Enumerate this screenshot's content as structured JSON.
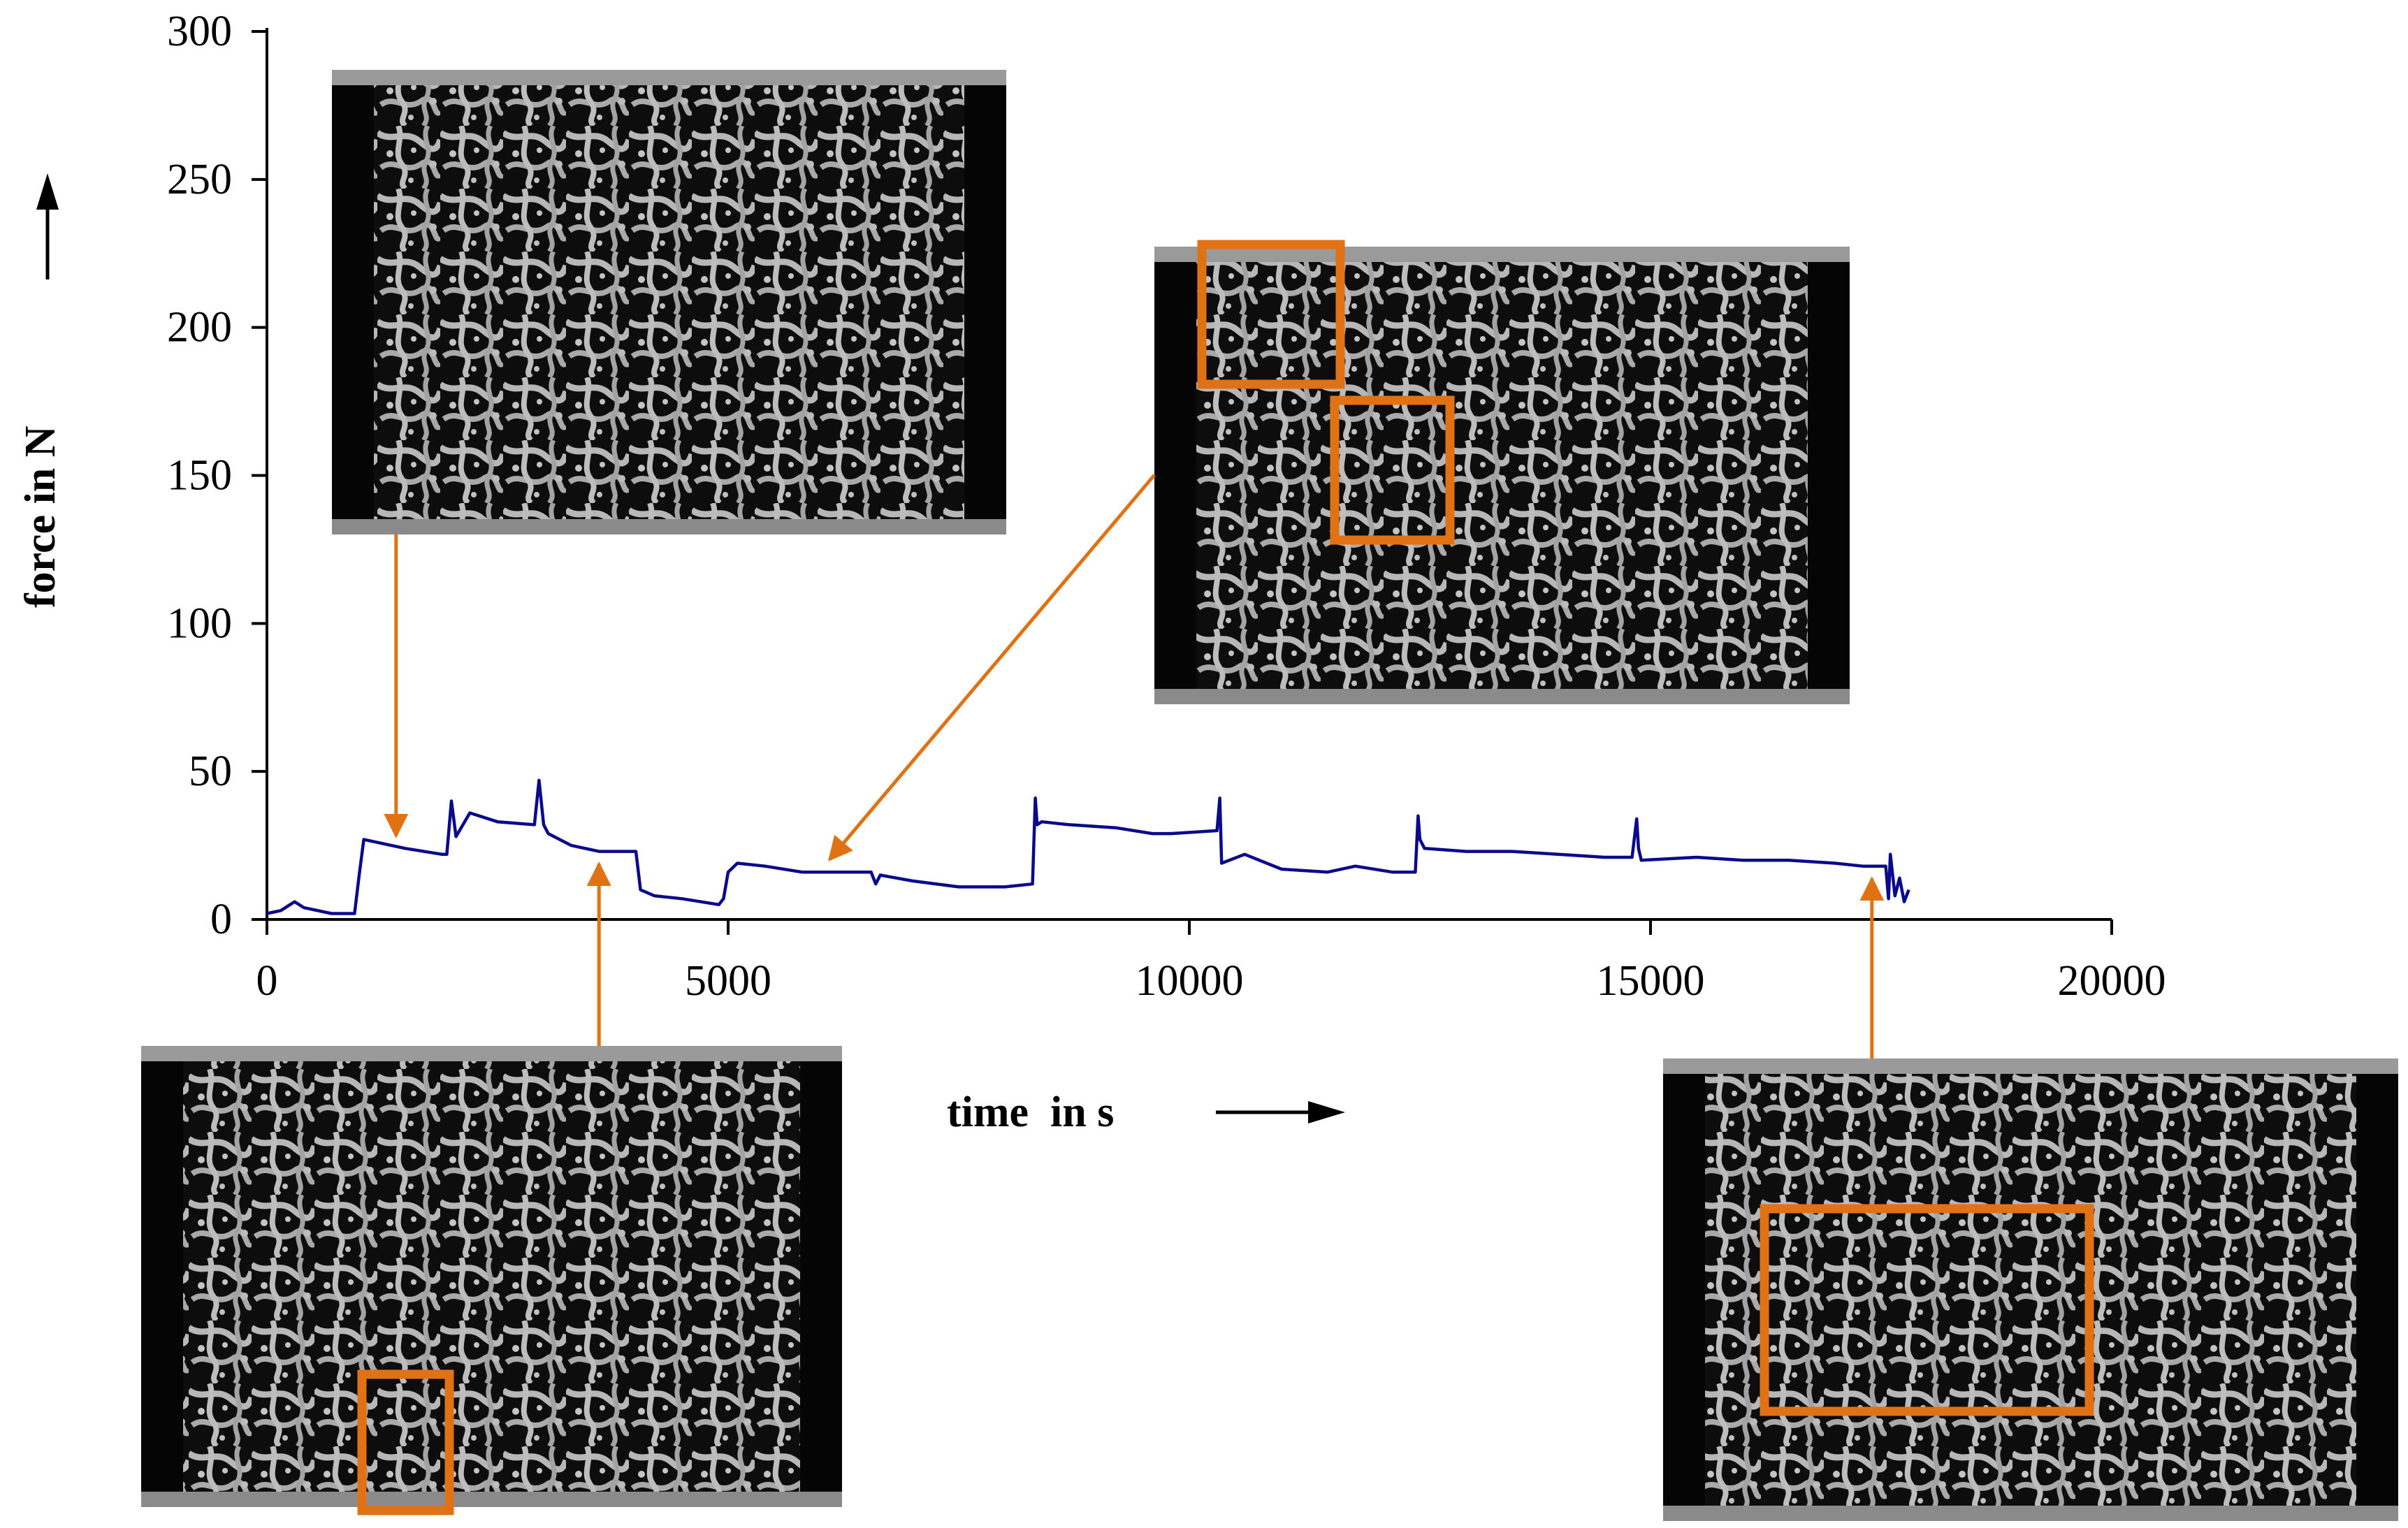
{
  "chart_data": {
    "type": "line",
    "xlabel": "time  in s",
    "ylabel": "force in N",
    "xlim": [
      0,
      20000
    ],
    "ylim": [
      0,
      300
    ],
    "x_ticks": [
      "0",
      "5000",
      "10000",
      "15000",
      "20000"
    ],
    "y_ticks": [
      "0",
      "50",
      "100",
      "150",
      "200",
      "250",
      "300"
    ],
    "grid": false,
    "legend": "none",
    "colors": {
      "series": "#0a0a8c",
      "annotation": "#e07214",
      "axis": "#000000"
    },
    "series": [
      {
        "x": [
          0,
          150,
          300,
          400,
          700,
          950,
          1000,
          1050,
          1500,
          1900,
          1950,
          2000,
          2050,
          2200,
          2500,
          2900,
          2950,
          3000,
          3050,
          3300,
          3600,
          4000,
          4050,
          4200,
          4500,
          4900,
          4950,
          5000,
          5100,
          5400,
          5800,
          6200,
          6550,
          6600,
          6650,
          7000,
          7500,
          8000,
          8300,
          8330,
          8350,
          8400,
          8700,
          9200,
          9600,
          9800,
          10300,
          10330,
          10350,
          10600,
          11000,
          11500,
          11800,
          12200,
          12450,
          12480,
          12500,
          12550,
          13000,
          13500,
          14000,
          14500,
          14800,
          14850,
          14870,
          14900,
          15500,
          16000,
          16500,
          17000,
          17300,
          17550,
          17580,
          17600,
          17650,
          17700,
          17750,
          17800
        ],
        "y": [
          2,
          3,
          6,
          4,
          2,
          2,
          15,
          27,
          24,
          22,
          22,
          40,
          28,
          36,
          33,
          32,
          47,
          32,
          29,
          25,
          23,
          23,
          10,
          8,
          7,
          5,
          7,
          16,
          19,
          18,
          16,
          16,
          16,
          12,
          15,
          13,
          11,
          11,
          12,
          41,
          32,
          33,
          32,
          31,
          29,
          29,
          30,
          41,
          19,
          22,
          17,
          16,
          18,
          16,
          16,
          35,
          27,
          24,
          23,
          23,
          22,
          21,
          21,
          34,
          24,
          20,
          21,
          20,
          20,
          19,
          18,
          18,
          7,
          22,
          8,
          14,
          6,
          10
        ]
      }
    ],
    "annotations": [
      {
        "image": "ct-section-1",
        "time": 1400,
        "force": 24
      },
      {
        "image": "ct-section-2",
        "time": 3600,
        "force": 23
      },
      {
        "image": "ct-section-3",
        "time": 6100,
        "force": 16
      },
      {
        "image": "ct-section-4",
        "time": 17400,
        "force": 18
      }
    ]
  },
  "images": [
    {
      "id": "ct-section-1",
      "highlights": 0
    },
    {
      "id": "ct-section-2",
      "highlights": 1
    },
    {
      "id": "ct-section-3",
      "highlights": 2
    },
    {
      "id": "ct-section-4",
      "highlights": 1
    }
  ]
}
